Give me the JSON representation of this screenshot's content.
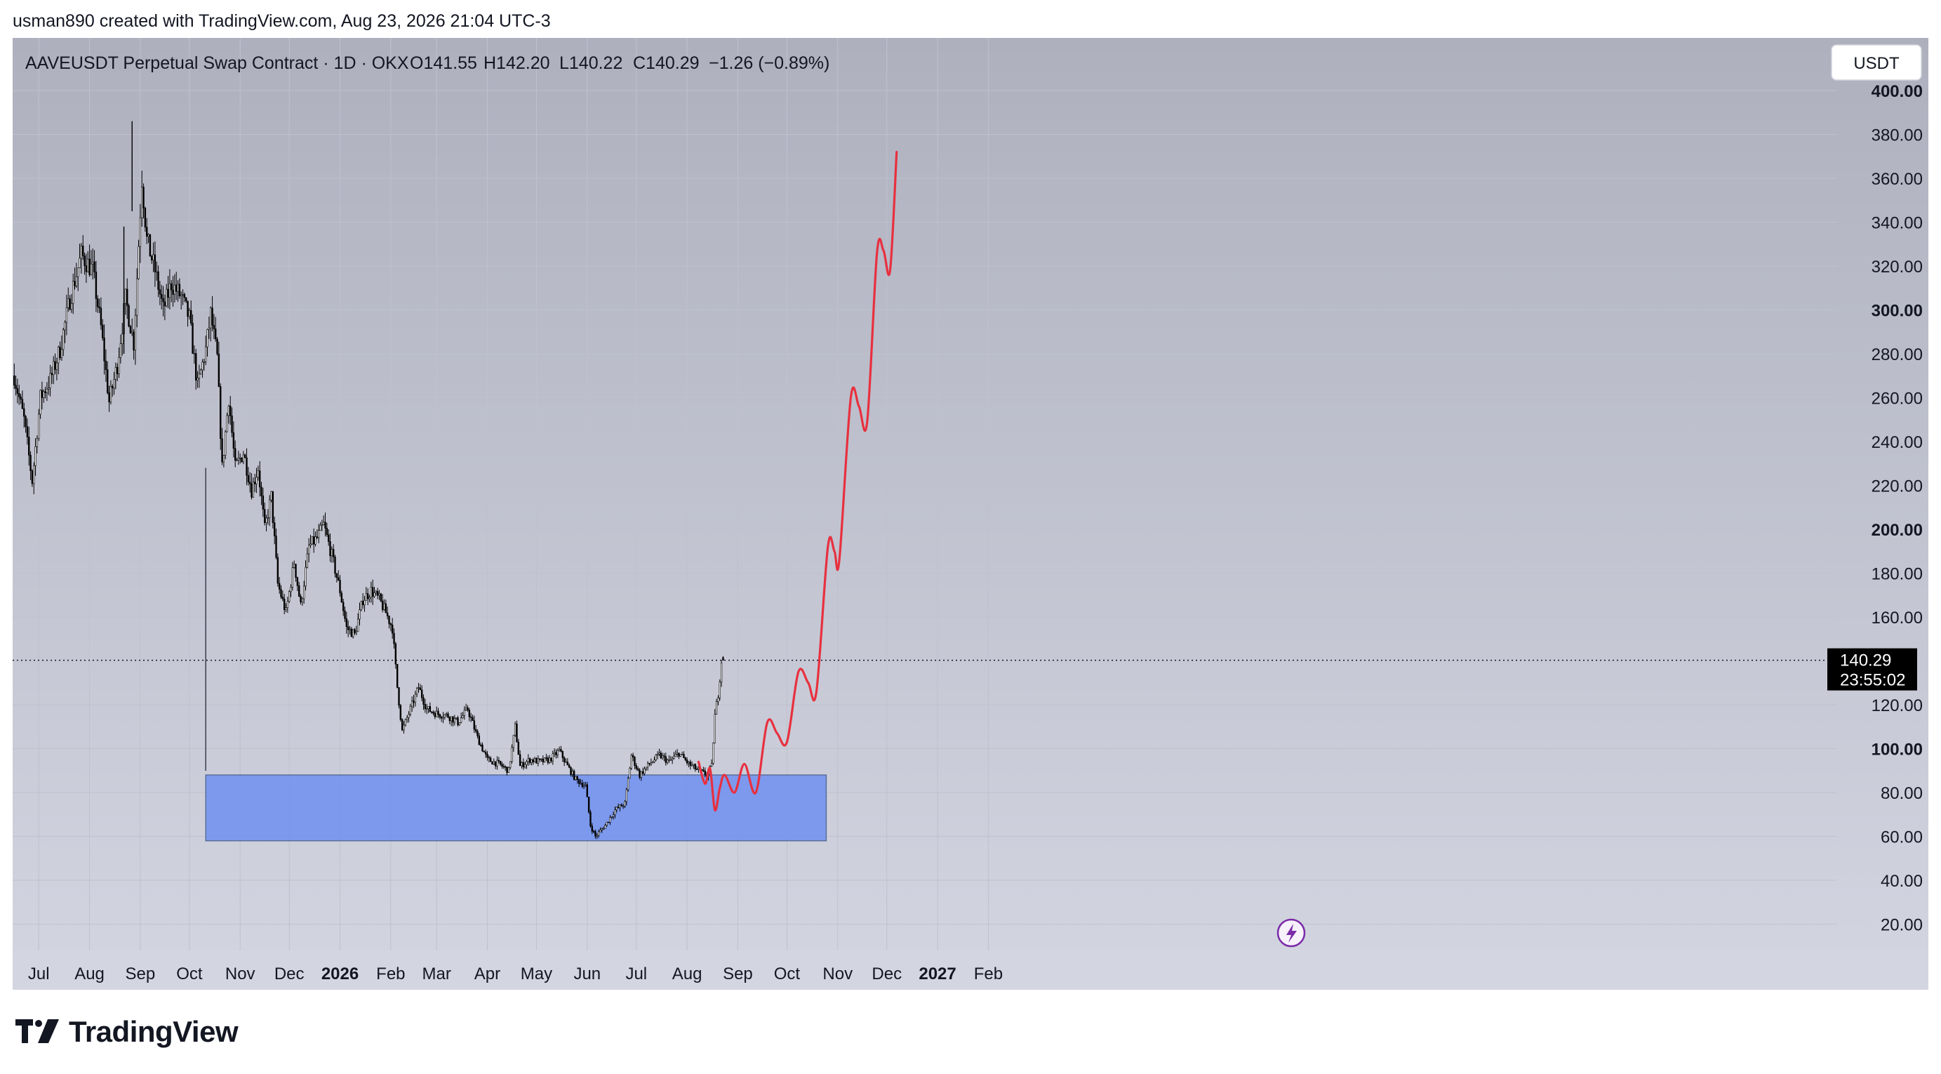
{
  "header": {
    "caption": "usman890 created with TradingView.com, Aug 23, 2026 21:04 UTC-3"
  },
  "legend": {
    "symbol": "AAVEUSDT Perpetual Swap Contract · 1D · OKX",
    "open": "O141.55",
    "high": "H142.20",
    "low": "L140.22",
    "close": "C140.29",
    "change": "−1.26 (−0.89%)"
  },
  "currency_button": "USDT",
  "price_label": {
    "price": "140.29",
    "countdown": "23:55:02"
  },
  "brand": {
    "name": "TradingView"
  },
  "colors": {
    "background_top": "#aeb0be",
    "background_bottom": "#d3d6e1",
    "candle": "#000000",
    "projection": "#e8303f",
    "zone": "#6f8ff0",
    "grid": "#bfc2cd"
  },
  "icons": {
    "event_marker": "lightning-icon",
    "logo": "tradingview-logo-icon"
  },
  "chart_data": {
    "type": "candlestick",
    "ylim": [
      8,
      424
    ],
    "y_ticks": [
      {
        "value": 20,
        "label": "20.00",
        "bold": false
      },
      {
        "value": 40,
        "label": "40.00",
        "bold": false
      },
      {
        "value": 60,
        "label": "60.00",
        "bold": false
      },
      {
        "value": 80,
        "label": "80.00",
        "bold": false
      },
      {
        "value": 100,
        "label": "100.00",
        "bold": true
      },
      {
        "value": 120,
        "label": "120.00",
        "bold": false
      },
      {
        "value": 160,
        "label": "160.00",
        "bold": false
      },
      {
        "value": 180,
        "label": "180.00",
        "bold": false
      },
      {
        "value": 200,
        "label": "200.00",
        "bold": true
      },
      {
        "value": 220,
        "label": "220.00",
        "bold": false
      },
      {
        "value": 240,
        "label": "240.00",
        "bold": false
      },
      {
        "value": 260,
        "label": "260.00",
        "bold": false
      },
      {
        "value": 280,
        "label": "280.00",
        "bold": false
      },
      {
        "value": 300,
        "label": "300.00",
        "bold": true
      },
      {
        "value": 320,
        "label": "320.00",
        "bold": false
      },
      {
        "value": 340,
        "label": "340.00",
        "bold": false
      },
      {
        "value": 360,
        "label": "360.00",
        "bold": false
      },
      {
        "value": 380,
        "label": "380.00",
        "bold": false
      },
      {
        "value": 400,
        "label": "400.00",
        "bold": true
      }
    ],
    "x_ticks": [
      {
        "date": "2025-07-01",
        "label": "Jul",
        "bold": false
      },
      {
        "date": "2025-08-01",
        "label": "Aug",
        "bold": false
      },
      {
        "date": "2025-09-01",
        "label": "Sep",
        "bold": false
      },
      {
        "date": "2025-10-01",
        "label": "Oct",
        "bold": false
      },
      {
        "date": "2025-11-01",
        "label": "Nov",
        "bold": false
      },
      {
        "date": "2025-12-01",
        "label": "Dec",
        "bold": false
      },
      {
        "date": "2026-01-01",
        "label": "2026",
        "bold": true
      },
      {
        "date": "2026-02-01",
        "label": "Feb",
        "bold": false
      },
      {
        "date": "2026-03-01",
        "label": "Mar",
        "bold": false
      },
      {
        "date": "2026-04-01",
        "label": "Apr",
        "bold": false
      },
      {
        "date": "2026-05-01",
        "label": "May",
        "bold": false
      },
      {
        "date": "2026-06-01",
        "label": "Jun",
        "bold": false
      },
      {
        "date": "2026-07-01",
        "label": "Jul",
        "bold": false
      },
      {
        "date": "2026-08-01",
        "label": "Aug",
        "bold": false
      },
      {
        "date": "2026-09-01",
        "label": "Sep",
        "bold": false
      },
      {
        "date": "2026-10-01",
        "label": "Oct",
        "bold": false
      },
      {
        "date": "2026-11-01",
        "label": "Nov",
        "bold": false
      },
      {
        "date": "2026-12-01",
        "label": "Dec",
        "bold": false
      },
      {
        "date": "2027-01-01",
        "label": "2027",
        "bold": true
      },
      {
        "date": "2027-02-01",
        "label": "Feb",
        "bold": false
      }
    ],
    "last_price": 140.29,
    "zone": {
      "start": "2025-10-11",
      "end": "2026-10-25",
      "low": 58,
      "high": 88
    },
    "price_path": [
      [
        "2025-06-16",
        270
      ],
      [
        "2025-06-22",
        250
      ],
      [
        "2025-06-27",
        222
      ],
      [
        "2025-07-02",
        260
      ],
      [
        "2025-07-08",
        268
      ],
      [
        "2025-07-14",
        282
      ],
      [
        "2025-07-20",
        305
      ],
      [
        "2025-07-27",
        325
      ],
      [
        "2025-08-03",
        318
      ],
      [
        "2025-08-08",
        292
      ],
      [
        "2025-08-13",
        258
      ],
      [
        "2025-08-18",
        275
      ],
      [
        "2025-08-23",
        305
      ],
      [
        "2025-08-28",
        285
      ],
      [
        "2025-09-02",
        360
      ],
      [
        "2025-09-05",
        332
      ],
      [
        "2025-09-10",
        318
      ],
      [
        "2025-09-15",
        300
      ],
      [
        "2025-09-20",
        312
      ],
      [
        "2025-09-26",
        306
      ],
      [
        "2025-10-01",
        296
      ],
      [
        "2025-10-06",
        265
      ],
      [
        "2025-10-11",
        282
      ],
      [
        "2025-10-14",
        298
      ],
      [
        "2025-10-18",
        278
      ],
      [
        "2025-10-21",
        228
      ],
      [
        "2025-10-25",
        260
      ],
      [
        "2025-10-29",
        228
      ],
      [
        "2025-11-03",
        235
      ],
      [
        "2025-11-08",
        218
      ],
      [
        "2025-11-12",
        228
      ],
      [
        "2025-11-16",
        200
      ],
      [
        "2025-11-20",
        215
      ],
      [
        "2025-11-24",
        175
      ],
      [
        "2025-11-29",
        162
      ],
      [
        "2025-12-04",
        185
      ],
      [
        "2025-12-08",
        165
      ],
      [
        "2025-12-13",
        192
      ],
      [
        "2025-12-18",
        196
      ],
      [
        "2025-12-22",
        202
      ],
      [
        "2025-12-27",
        188
      ],
      [
        "2026-01-01",
        172
      ],
      [
        "2026-01-05",
        155
      ],
      [
        "2026-01-10",
        152
      ],
      [
        "2026-01-15",
        168
      ],
      [
        "2026-01-20",
        172
      ],
      [
        "2026-01-25",
        168
      ],
      [
        "2026-01-29",
        162
      ],
      [
        "2026-02-02",
        155
      ],
      [
        "2026-02-05",
        128
      ],
      [
        "2026-02-08",
        108
      ],
      [
        "2026-02-13",
        118
      ],
      [
        "2026-02-18",
        128
      ],
      [
        "2026-02-23",
        118
      ],
      [
        "2026-03-01",
        116
      ],
      [
        "2026-03-08",
        115
      ],
      [
        "2026-03-14",
        112
      ],
      [
        "2026-03-20",
        118
      ],
      [
        "2026-03-26",
        105
      ],
      [
        "2026-04-01",
        95
      ],
      [
        "2026-04-08",
        93
      ],
      [
        "2026-04-14",
        90
      ],
      [
        "2026-04-18",
        110
      ],
      [
        "2026-04-21",
        92
      ],
      [
        "2026-04-27",
        95
      ],
      [
        "2026-05-03",
        94
      ],
      [
        "2026-05-09",
        95
      ],
      [
        "2026-05-15",
        99
      ],
      [
        "2026-05-20",
        92
      ],
      [
        "2026-05-25",
        86
      ],
      [
        "2026-05-31",
        83
      ],
      [
        "2026-06-03",
        65
      ],
      [
        "2026-06-06",
        60
      ],
      [
        "2026-06-12",
        65
      ],
      [
        "2026-06-18",
        72
      ],
      [
        "2026-06-24",
        75
      ],
      [
        "2026-06-28",
        97
      ],
      [
        "2026-07-03",
        88
      ],
      [
        "2026-07-09",
        93
      ],
      [
        "2026-07-15",
        97
      ],
      [
        "2026-07-21",
        94
      ],
      [
        "2026-07-27",
        98
      ],
      [
        "2026-08-02",
        93
      ],
      [
        "2026-08-08",
        90
      ],
      [
        "2026-08-13",
        88
      ],
      [
        "2026-08-16",
        92
      ],
      [
        "2026-08-18",
        115
      ],
      [
        "2026-08-20",
        125
      ],
      [
        "2026-08-22",
        140
      ],
      [
        "2026-08-23",
        140.29
      ]
    ],
    "projection": [
      [
        "2026-08-08",
        94
      ],
      [
        "2026-08-12",
        84
      ],
      [
        "2026-08-15",
        91
      ],
      [
        "2026-08-18",
        72
      ],
      [
        "2026-08-21",
        82
      ],
      [
        "2026-08-24",
        88
      ],
      [
        "2026-08-30",
        80
      ],
      [
        "2026-09-05",
        93
      ],
      [
        "2026-09-12",
        80
      ],
      [
        "2026-09-19",
        112
      ],
      [
        "2026-09-25",
        107
      ],
      [
        "2026-10-01",
        103
      ],
      [
        "2026-10-08",
        135
      ],
      [
        "2026-10-14",
        130
      ],
      [
        "2026-10-19",
        126
      ],
      [
        "2026-10-26",
        192
      ],
      [
        "2026-10-30",
        190
      ],
      [
        "2026-11-02",
        186
      ],
      [
        "2026-11-09",
        260
      ],
      [
        "2026-11-14",
        256
      ],
      [
        "2026-11-19",
        249
      ],
      [
        "2026-11-25",
        326
      ],
      [
        "2026-11-29",
        327
      ],
      [
        "2026-12-03",
        318
      ],
      [
        "2026-12-07",
        372
      ]
    ]
  }
}
